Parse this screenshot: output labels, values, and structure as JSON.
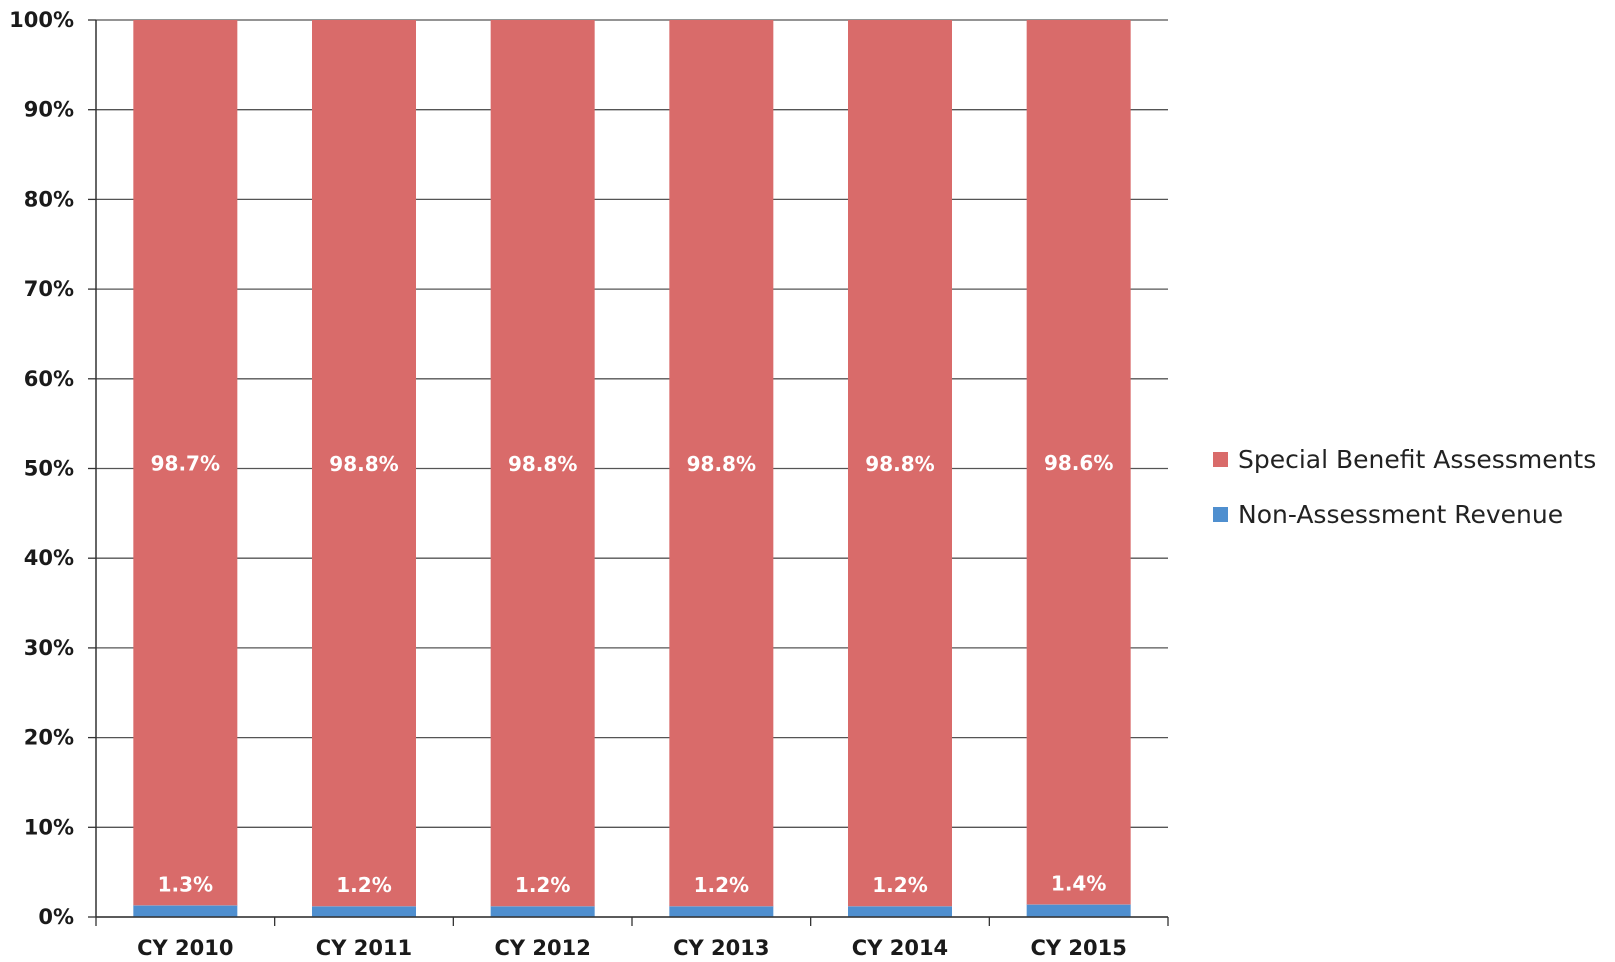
{
  "chart_data": {
    "type": "bar",
    "stacked": true,
    "categories": [
      "CY 2010",
      "CY 2011",
      "CY 2012",
      "CY 2013",
      "CY 2014",
      "CY 2015"
    ],
    "series": [
      {
        "name": "Non-Assessment Revenue",
        "color": "#4f8fcf",
        "values": [
          1.3,
          1.2,
          1.2,
          1.2,
          1.2,
          1.4
        ],
        "labels": [
          "1.3%",
          "1.2%",
          "1.2%",
          "1.2%",
          "1.2%",
          "1.4%"
        ]
      },
      {
        "name": "Special Benefit Assessments",
        "color": "#d96b6a",
        "values": [
          98.7,
          98.8,
          98.8,
          98.8,
          98.8,
          98.6
        ],
        "labels": [
          "98.7%",
          "98.8%",
          "98.8%",
          "98.8%",
          "98.8%",
          "98.6%"
        ]
      }
    ],
    "ylim": [
      0,
      100
    ],
    "yticks": [
      0,
      10,
      20,
      30,
      40,
      50,
      60,
      70,
      80,
      90,
      100
    ],
    "ytick_labels": [
      "0%",
      "10%",
      "20%",
      "30%",
      "40%",
      "50%",
      "60%",
      "70%",
      "80%",
      "90%",
      "100%"
    ],
    "grid": true,
    "legend_position": "right",
    "legend_order": [
      "Special Benefit Assessments",
      "Non-Assessment Revenue"
    ],
    "title": "",
    "xlabel": "",
    "ylabel": ""
  }
}
